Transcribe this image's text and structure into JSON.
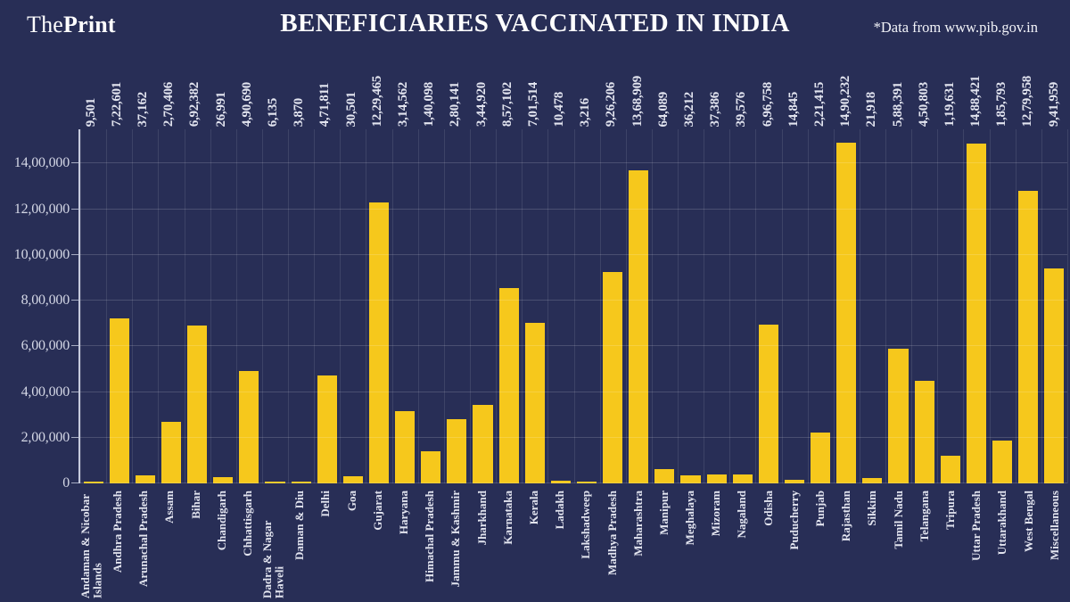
{
  "header": {
    "logo_the": "The",
    "logo_print": "Print",
    "title": "BENEFICIARIES VACCINATED IN INDIA",
    "source_note": "*Data from www.pib.gov.in"
  },
  "colors": {
    "background": "#282E56",
    "bar": "#F6C81C",
    "axis": "#C6CADD",
    "label_text": "#E2E4EF",
    "title_text": "#FFFFFF"
  },
  "chart_data": {
    "type": "bar",
    "title": "BENEFICIARIES VACCINATED IN INDIA",
    "source": "*Data from www.pib.gov.in",
    "xlabel": "",
    "ylabel": "",
    "ylim": [
      0,
      1550000
    ],
    "ytick_interval": 200000,
    "ytick_labels": [
      "0",
      "2,00,000",
      "4,00,000",
      "6,00,000",
      "8,00,000",
      "10,00,000",
      "12,00,000",
      "14,00,000"
    ],
    "grid": true,
    "legend": false,
    "categories": [
      "Andaman & Nicobar Islands",
      "Andhra Pradesh",
      "Arunachal Pradesh",
      "Assam",
      "Bihar",
      "Chandigarh",
      "Chhattisgarh",
      "Dadra & Nagar Haveli",
      "Daman & Diu",
      "Delhi",
      "Goa",
      "Gujarat",
      "Haryana",
      "Himachal Pradesh",
      "Jammu & Kashmir",
      "Jharkhand",
      "Karnataka",
      "Kerala",
      "Ladakh",
      "Lakshadweep",
      "Madhya Pradesh",
      "Maharashtra",
      "Manipur",
      "Meghalaya",
      "Mizoram",
      "Nagaland",
      "Odisha",
      "Puducherry",
      "Punjab",
      "Rajasthan",
      "Sikkim",
      "Tamil Nadu",
      "Telangana",
      "Tripura",
      "Uttar Pradesh",
      "Uttarakhand",
      "West Bengal",
      "Miscellaneous"
    ],
    "values": [
      9501,
      722601,
      37162,
      270406,
      692382,
      26991,
      490690,
      6135,
      3870,
      471811,
      30501,
      1229465,
      314562,
      140098,
      280141,
      344920,
      857102,
      701514,
      10478,
      3216,
      926206,
      1368909,
      64089,
      36212,
      37386,
      39576,
      696758,
      14845,
      221415,
      1490232,
      21918,
      588391,
      450803,
      119631,
      1488421,
      185793,
      1279958,
      941959
    ],
    "value_labels": [
      "9,501",
      "7,22,601",
      "37,162",
      "2,70,406",
      "6,92,382",
      "26,991",
      "4,90,690",
      "6,135",
      "3,870",
      "4,71,811",
      "30,501",
      "12,29,465",
      "3,14,562",
      "1,40,098",
      "2,80,141",
      "3,44,920",
      "8,57,102",
      "7,01,514",
      "10,478",
      "3,216",
      "9,26,206",
      "13,68,909",
      "64,089",
      "36,212",
      "37,386",
      "39,576",
      "6,96,758",
      "14,845",
      "2,21,415",
      "14,90,232",
      "21,918",
      "5,88,391",
      "4,50,803",
      "1,19,631",
      "14,88,421",
      "1,85,793",
      "12,79,958",
      "9,41,959"
    ]
  }
}
